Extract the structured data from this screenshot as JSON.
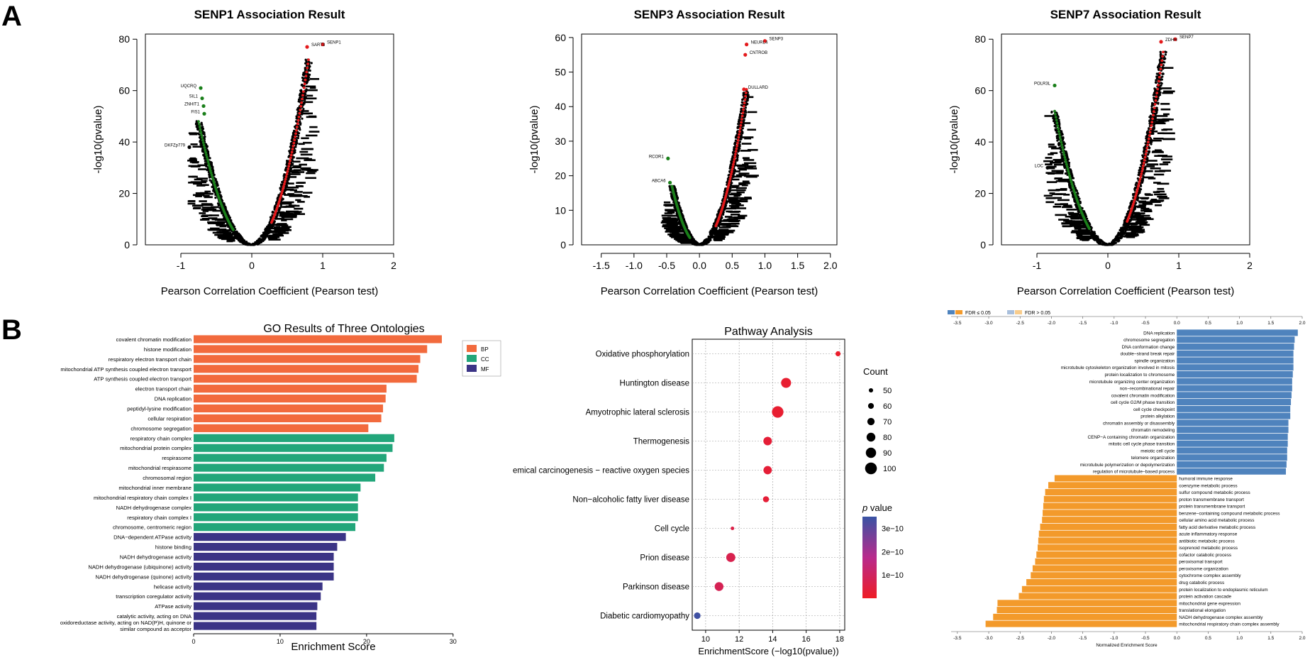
{
  "panel_labels": {
    "a": "A",
    "b": "B"
  },
  "volcano_axis": {
    "xlabel": "Pearson Correlation Coefficient (Pearson test)",
    "ylabel": "-log10(pvalue)"
  },
  "colors": {
    "volcano_red": "#e41a1c",
    "volcano_green": "#1a7f1a",
    "bp": "#f26a3d",
    "cc": "#22a67a",
    "mf": "#3b3486",
    "gsea_blue": "#4f83bd",
    "gsea_orange": "#f39a2b",
    "pathway_low": "#ee1c25",
    "pathway_high": "#3953a4"
  },
  "chart_data": [
    {
      "type": "scatter",
      "id": "senp1",
      "title": "SENP1 Association Result",
      "xlabel": "Pearson Correlation Coefficient (Pearson test)",
      "ylabel": "-log10(pvalue)",
      "xlim": [
        -1.5,
        2
      ],
      "ylim": [
        0,
        82
      ],
      "xticks": [
        -1,
        0,
        1,
        2
      ],
      "yticks": [
        0,
        20,
        40,
        60,
        80
      ],
      "neg_extent": -0.75,
      "pos_extent": 0.8,
      "neg_top": 48,
      "pos_top": 72,
      "labeled_points": [
        {
          "label": "SENP1",
          "x": 1.0,
          "y": 78,
          "color": "red"
        },
        {
          "label": "SART3",
          "x": 0.78,
          "y": 77,
          "color": "red"
        },
        {
          "label": "UQCRQ",
          "x": -0.72,
          "y": 61,
          "color": "green"
        },
        {
          "label": "SIL1",
          "x": -0.7,
          "y": 57,
          "color": "green"
        },
        {
          "label": "ZNHIT1",
          "x": -0.68,
          "y": 54,
          "color": "green"
        },
        {
          "label": "FIS1",
          "x": -0.67,
          "y": 51,
          "color": "green"
        },
        {
          "label": "DKFZp779",
          "x": -0.88,
          "y": 38,
          "color": "black"
        }
      ]
    },
    {
      "type": "scatter",
      "id": "senp3",
      "title": "SENP3 Association Result",
      "xlabel": "Pearson Correlation Coefficient (Pearson test)",
      "ylabel": "-log10(pvalue)",
      "xlim": [
        -1.8,
        2.1
      ],
      "ylim": [
        0,
        61
      ],
      "xticks": [
        -1.5,
        -1.0,
        -0.5,
        0.0,
        0.5,
        1.0,
        1.5,
        2.0
      ],
      "xtick_labels": [
        "-1.5",
        "-1.0",
        "-0.5",
        "0.0",
        "0.5",
        "1.0",
        "1.5",
        "2.0"
      ],
      "yticks": [
        0,
        10,
        20,
        30,
        40,
        50,
        60
      ],
      "neg_extent": -0.42,
      "pos_extent": 0.72,
      "neg_top": 17,
      "pos_top": 45,
      "labeled_points": [
        {
          "label": "SENP3",
          "x": 1.0,
          "y": 59,
          "color": "red"
        },
        {
          "label": "NEURL4",
          "x": 0.72,
          "y": 58,
          "color": "red"
        },
        {
          "label": "CNTROB",
          "x": 0.7,
          "y": 55,
          "color": "red"
        },
        {
          "label": "DULLARD",
          "x": 0.68,
          "y": 45,
          "color": "red"
        },
        {
          "label": "RCOR1",
          "x": -0.48,
          "y": 25,
          "color": "green"
        },
        {
          "label": "ABCA6",
          "x": -0.45,
          "y": 18,
          "color": "green"
        }
      ]
    },
    {
      "type": "scatter",
      "id": "senp7",
      "title": "SENP7 Association Result",
      "xlabel": "Pearson Correlation Coefficient (Pearson test)",
      "ylabel": "-log10(pvalue)",
      "xlim": [
        -1.5,
        2
      ],
      "ylim": [
        0,
        82
      ],
      "xticks": [
        -1,
        0,
        1,
        2
      ],
      "yticks": [
        0,
        20,
        40,
        60,
        80
      ],
      "neg_extent": -0.75,
      "pos_extent": 0.78,
      "neg_top": 52,
      "pos_top": 75,
      "labeled_points": [
        {
          "label": "SENP7",
          "x": 0.95,
          "y": 80,
          "color": "red"
        },
        {
          "label": "ZDHH",
          "x": 0.75,
          "y": 79,
          "color": "red"
        },
        {
          "label": "POLR3L",
          "x": -0.75,
          "y": 62,
          "color": "green"
        },
        {
          "label": "LOC",
          "x": -0.85,
          "y": 30,
          "color": "black"
        }
      ]
    },
    {
      "type": "bar",
      "id": "go",
      "orientation": "horizontal",
      "title": "GO Results of Three Ontologies",
      "xlabel": "Enrichment Score",
      "xlim": [
        0,
        31
      ],
      "xticks": [
        0,
        10,
        20,
        30
      ],
      "legend": [
        "BP",
        "CC",
        "MF"
      ],
      "legend_position": "top-right",
      "categories": [
        {
          "label": "covalent chromatin modification",
          "value": 28.7,
          "group": "BP"
        },
        {
          "label": "histone modification",
          "value": 27.0,
          "group": "BP"
        },
        {
          "label": "respiratory electron transport chain",
          "value": 26.2,
          "group": "BP"
        },
        {
          "label": "mitochondrial ATP synthesis coupled electron transport",
          "value": 26.0,
          "group": "BP"
        },
        {
          "label": "ATP synthesis coupled electron transport",
          "value": 25.8,
          "group": "BP"
        },
        {
          "label": "electron transport chain",
          "value": 22.3,
          "group": "BP"
        },
        {
          "label": "DNA replication",
          "value": 22.2,
          "group": "BP"
        },
        {
          "label": "peptidyl-lysine modification",
          "value": 21.9,
          "group": "BP"
        },
        {
          "label": "cellular respiration",
          "value": 21.7,
          "group": "BP"
        },
        {
          "label": "chromosome segregation",
          "value": 20.2,
          "group": "BP"
        },
        {
          "label": "respiratory chain complex",
          "value": 23.2,
          "group": "CC"
        },
        {
          "label": "mitochondrial protein complex",
          "value": 23.0,
          "group": "CC"
        },
        {
          "label": "respirasome",
          "value": 22.3,
          "group": "CC"
        },
        {
          "label": "mitochondrial respirasome",
          "value": 22.0,
          "group": "CC"
        },
        {
          "label": "chromosomal region",
          "value": 21.0,
          "group": "CC"
        },
        {
          "label": "mitochondrial inner membrane",
          "value": 19.3,
          "group": "CC"
        },
        {
          "label": "mitochondrial respiratory chain complex I",
          "value": 19.0,
          "group": "CC"
        },
        {
          "label": "NADH dehydrogenase complex",
          "value": 19.0,
          "group": "CC"
        },
        {
          "label": "respiratory chain complex I",
          "value": 19.0,
          "group": "CC"
        },
        {
          "label": "chromosome, centromeric region",
          "value": 18.7,
          "group": "CC"
        },
        {
          "label": "DNA−dependent ATPase activity",
          "value": 17.6,
          "group": "MF"
        },
        {
          "label": "histone binding",
          "value": 16.6,
          "group": "MF"
        },
        {
          "label": "NADH dehydrogenase activity",
          "value": 16.2,
          "group": "MF"
        },
        {
          "label": "NADH dehydrogenase (ubiquinone) activity",
          "value": 16.2,
          "group": "MF"
        },
        {
          "label": "NADH dehydrogenase (quinone) activity",
          "value": 16.2,
          "group": "MF"
        },
        {
          "label": "helicase activity",
          "value": 14.9,
          "group": "MF"
        },
        {
          "label": "transcription coregulator activity",
          "value": 14.7,
          "group": "MF"
        },
        {
          "label": "ATPase activity",
          "value": 14.3,
          "group": "MF"
        },
        {
          "label": "catalytic activity, acting on DNA",
          "value": 14.2,
          "group": "MF"
        },
        {
          "label": "oxidoreductase activity, acting on NAD(P)H, quinone or similar compound as acceptor",
          "label_lines": [
            "oxidoreductase activity, acting on NAD(P)H, quinone or",
            "similar compound as acceptor"
          ],
          "value": 14.2,
          "group": "MF"
        }
      ]
    },
    {
      "type": "scatter",
      "id": "pathway",
      "title": "Pathway Analysis",
      "xlabel": "EnrichmentScore (−log10(pvalue))",
      "xlim": [
        9.2,
        18.3
      ],
      "xticks": [
        10,
        12,
        14,
        16,
        18
      ],
      "size_legend_title": "Count",
      "size_legend": [
        50,
        60,
        70,
        80,
        90,
        100
      ],
      "color_legend_title": "p",
      "color_legend_suffix": "value",
      "color_legend_ticks": [
        "3e−10",
        "2e−10",
        "1e−10"
      ],
      "color_legend_values": [
        3e-10,
        2e-10,
        1e-10
      ],
      "color_range": [
        0,
        3.5e-10
      ],
      "points": [
        {
          "label": "Oxidative phosphorylation",
          "x": 17.9,
          "count": 55,
          "p": 1e-11
        },
        {
          "label": "Huntington disease",
          "x": 14.8,
          "count": 88,
          "p": 2e-11
        },
        {
          "label": "Amyotrophic lateral sclerosis",
          "x": 14.3,
          "count": 98,
          "p": 2e-11
        },
        {
          "label": "Thermogenesis",
          "x": 13.7,
          "count": 78,
          "p": 3e-11
        },
        {
          "label": "emical carcinogenesis − reactive oxygen species",
          "x": 13.7,
          "count": 77,
          "p": 3e-11
        },
        {
          "label": "Non−alcoholic fatty liver disease",
          "x": 13.6,
          "count": 62,
          "p": 3e-11
        },
        {
          "label": "Cell cycle",
          "x": 11.6,
          "count": 45,
          "p": 6e-11
        },
        {
          "label": "Prion disease",
          "x": 11.5,
          "count": 82,
          "p": 7e-11
        },
        {
          "label": "Parkinson disease",
          "x": 10.8,
          "count": 80,
          "p": 8e-11
        },
        {
          "label": "Diabetic cardiomyopathy",
          "x": 9.5,
          "count": 65,
          "p": 3.4e-10
        }
      ]
    },
    {
      "type": "bar",
      "id": "gsea",
      "orientation": "horizontal",
      "xlabel": "Normalized Enrichment Score",
      "xlim": [
        -3.6,
        2.0
      ],
      "xticks": [
        -3.5,
        -3.0,
        -2.5,
        -2.0,
        -1.5,
        -1.0,
        -0.5,
        0.0,
        0.5,
        1.0,
        1.5,
        2.0
      ],
      "xtick_labels": [
        "-3.5",
        "-3.0",
        "-2.5",
        "-2.0",
        "-1.5",
        "-1.0",
        "-0.5",
        "0.0",
        "0.5",
        "1.0",
        "1.5",
        "2.0"
      ],
      "legend": [
        "FDR ≤ 0.05",
        "FDR > 0.05"
      ],
      "legend_position": "top-left",
      "categories": [
        {
          "label": "DNA replication",
          "value": 1.93
        },
        {
          "label": "chromosome segregation",
          "value": 1.88
        },
        {
          "label": "DNA conformation change",
          "value": 1.87
        },
        {
          "label": "double−strand break repair",
          "value": 1.86
        },
        {
          "label": "spindle organization",
          "value": 1.86
        },
        {
          "label": "microtubule cytoskeleton organization involved in mitosis",
          "value": 1.86
        },
        {
          "label": "protein localization to chromosome",
          "value": 1.85
        },
        {
          "label": "microtubule organizing center organization",
          "value": 1.84
        },
        {
          "label": "non−recombinational repair",
          "value": 1.84
        },
        {
          "label": "covalent chromatin modification",
          "value": 1.83
        },
        {
          "label": "cell cycle G2/M phase transition",
          "value": 1.82
        },
        {
          "label": "cell cycle checkpoint",
          "value": 1.81
        },
        {
          "label": "protein alkylation",
          "value": 1.81
        },
        {
          "label": "chromatin assembly or disassembly",
          "value": 1.78
        },
        {
          "label": "chromatin remodeling",
          "value": 1.78
        },
        {
          "label": "CENP−A containing chromatin organization",
          "value": 1.77
        },
        {
          "label": "mitotic cell cycle phase transition",
          "value": 1.77
        },
        {
          "label": "meiotic cell cycle",
          "value": 1.76
        },
        {
          "label": "telomere organization",
          "value": 1.76
        },
        {
          "label": "microtubule polymerization or depolymerization",
          "value": 1.75
        },
        {
          "label": "regulation of microtubule−based process",
          "value": 1.74
        },
        {
          "label": "humoral immune response",
          "value": -1.95
        },
        {
          "label": "coenzyme metabolic process",
          "value": -2.05
        },
        {
          "label": "sulfur compound metabolic process",
          "value": -2.1
        },
        {
          "label": "proton transmembrane transport",
          "value": -2.12
        },
        {
          "label": "protein transmembrane transport",
          "value": -2.13
        },
        {
          "label": "benzene−containing compound metabolic process",
          "value": -2.14
        },
        {
          "label": "cellular amino acid metabolic process",
          "value": -2.15
        },
        {
          "label": "fatty acid derivative metabolic process",
          "value": -2.18
        },
        {
          "label": "acute inflammatory response",
          "value": -2.2
        },
        {
          "label": "antibiotic metabolic process",
          "value": -2.21
        },
        {
          "label": "isoprenoid metabolic process",
          "value": -2.22
        },
        {
          "label": "cofactor catabolic process",
          "value": -2.24
        },
        {
          "label": "peroxisomal transport",
          "value": -2.26
        },
        {
          "label": "peroxisome organization",
          "value": -2.3
        },
        {
          "label": "cytochrome complex assembly",
          "value": -2.33
        },
        {
          "label": "drug catabolic process",
          "value": -2.4
        },
        {
          "label": "protein localization to endoplasmic reticulum",
          "value": -2.47
        },
        {
          "label": "protein activation cascade",
          "value": -2.52
        },
        {
          "label": "mitochondrial gene expression",
          "value": -2.86
        },
        {
          "label": "translational elongation",
          "value": -2.87
        },
        {
          "label": "NADH dehydrogenase complex assembly",
          "value": -2.93
        },
        {
          "label": "mitochondrial respiratory chain complex assembly",
          "value": -3.05
        }
      ]
    }
  ]
}
